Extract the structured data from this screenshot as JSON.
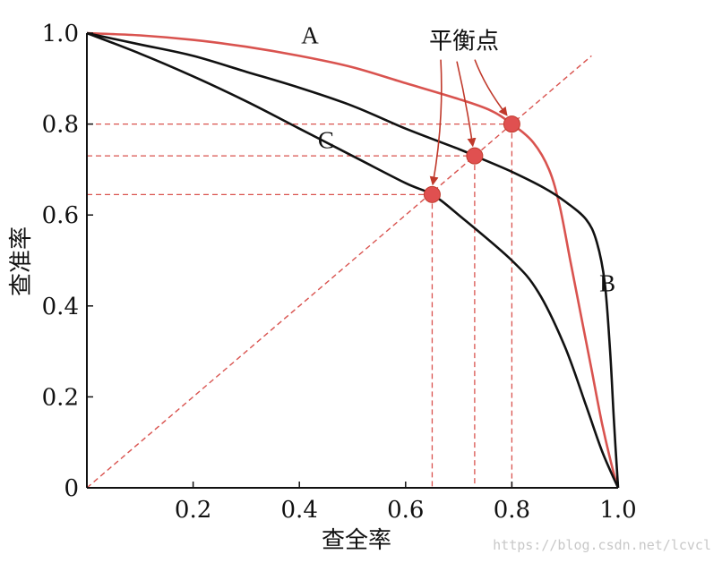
{
  "chart_data": {
    "type": "line",
    "title": "",
    "xlabel": "查全率",
    "ylabel": "查准率",
    "xlim": [
      0,
      1.0
    ],
    "ylim": [
      0,
      1.0
    ],
    "x_ticks": [
      {
        "value": 0.2,
        "label": "0.2"
      },
      {
        "value": 0.4,
        "label": "0.4"
      },
      {
        "value": 0.6,
        "label": "0.6"
      },
      {
        "value": 0.8,
        "label": "0.8"
      },
      {
        "value": 1.0,
        "label": "1.0"
      }
    ],
    "y_ticks": [
      {
        "value": 0,
        "label": "0"
      },
      {
        "value": 0.2,
        "label": "0.2"
      },
      {
        "value": 0.4,
        "label": "0.4"
      },
      {
        "value": 0.6,
        "label": "0.6"
      },
      {
        "value": 0.8,
        "label": "0.8"
      },
      {
        "value": 1.0,
        "label": "1.0"
      }
    ],
    "grid": false,
    "series": [
      {
        "name": "A",
        "color": "#d9534f",
        "points": [
          [
            0,
            1.0
          ],
          [
            0.1,
            0.995
          ],
          [
            0.2,
            0.985
          ],
          [
            0.3,
            0.97
          ],
          [
            0.4,
            0.95
          ],
          [
            0.5,
            0.925
          ],
          [
            0.6,
            0.89
          ],
          [
            0.7,
            0.855
          ],
          [
            0.76,
            0.83
          ],
          [
            0.8,
            0.8
          ],
          [
            0.84,
            0.76
          ],
          [
            0.87,
            0.7
          ],
          [
            0.89,
            0.62
          ],
          [
            0.91,
            0.5
          ],
          [
            0.93,
            0.38
          ],
          [
            0.95,
            0.26
          ],
          [
            0.97,
            0.14
          ],
          [
            0.99,
            0.04
          ],
          [
            1.0,
            0
          ]
        ]
      },
      {
        "name": "B",
        "color": "#111111",
        "points": [
          [
            0,
            1.0
          ],
          [
            0.1,
            0.975
          ],
          [
            0.2,
            0.95
          ],
          [
            0.3,
            0.915
          ],
          [
            0.4,
            0.88
          ],
          [
            0.5,
            0.84
          ],
          [
            0.6,
            0.79
          ],
          [
            0.7,
            0.745
          ],
          [
            0.73,
            0.73
          ],
          [
            0.8,
            0.695
          ],
          [
            0.86,
            0.66
          ],
          [
            0.9,
            0.63
          ],
          [
            0.94,
            0.59
          ],
          [
            0.96,
            0.54
          ],
          [
            0.975,
            0.45
          ],
          [
            0.985,
            0.3
          ],
          [
            0.992,
            0.15
          ],
          [
            1.0,
            0
          ]
        ]
      },
      {
        "name": "C",
        "color": "#111111",
        "points": [
          [
            0,
            1.0
          ],
          [
            0.1,
            0.955
          ],
          [
            0.2,
            0.905
          ],
          [
            0.3,
            0.85
          ],
          [
            0.4,
            0.79
          ],
          [
            0.5,
            0.73
          ],
          [
            0.6,
            0.67
          ],
          [
            0.65,
            0.645
          ],
          [
            0.7,
            0.6
          ],
          [
            0.8,
            0.5
          ],
          [
            0.85,
            0.43
          ],
          [
            0.9,
            0.31
          ],
          [
            0.94,
            0.18
          ],
          [
            0.97,
            0.08
          ],
          [
            1.0,
            0
          ]
        ]
      }
    ],
    "diagonal": {
      "from": [
        0,
        0
      ],
      "to": [
        0.95,
        0.95
      ],
      "color": "#d9534f",
      "style": "dashed"
    },
    "break_even_points": [
      {
        "x": 0.65,
        "y": 0.645
      },
      {
        "x": 0.73,
        "y": 0.73
      },
      {
        "x": 0.8,
        "y": 0.8
      }
    ],
    "curve_labels": [
      {
        "text": "A",
        "x": 0.42,
        "y": 0.995
      },
      {
        "text": "B",
        "x": 0.98,
        "y": 0.45
      },
      {
        "text": "C",
        "x": 0.45,
        "y": 0.765
      }
    ],
    "annotation": {
      "text": "平衡点",
      "x": 0.71,
      "y": 0.985
    }
  },
  "watermark": "https://blog.csdn.net/lcvcl"
}
